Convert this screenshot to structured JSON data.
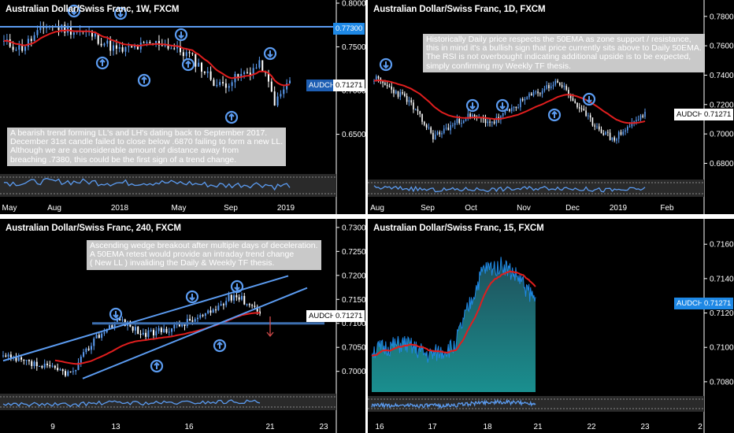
{
  "chart_data": [
    {
      "type": "candlestick",
      "title": "Australian Dollar/Swiss Franc, 1W, FXCM",
      "symbol_tag": "AUDCHF",
      "price_tag": "0.71271",
      "level_tag": "0.77300",
      "y_ticks": [
        "0.80000",
        "0.75000",
        "0.70000",
        "0.65000"
      ],
      "x_ticks": [
        "May",
        "Aug",
        "2018",
        "May",
        "Sep",
        "2019"
      ],
      "ylim": [
        0.61,
        0.8
      ],
      "last_close": 0.71271,
      "horizontal_level": 0.773,
      "annotation": [
        "A bearish trend forming LL's and LH's dating back to September 2017.",
        "December 31st candle failed to close below .6870 failing to form a new LL.",
        "Although we are a considerable amount of distance away from",
        "breaching .7380, this could be the first sign of a trend change."
      ]
    },
    {
      "type": "candlestick",
      "title": "Australian Dollar/Swiss Franc, 1D, FXCM",
      "symbol_tag": "AUDCHF",
      "price_tag": "0.71271",
      "y_ticks": [
        "0.78000",
        "0.76000",
        "0.74000",
        "0.72000",
        "0.70000",
        "0.68000"
      ],
      "x_ticks": [
        "Aug",
        "Sep",
        "Oct",
        "Nov",
        "Dec",
        "2019",
        "Feb"
      ],
      "ylim": [
        0.669,
        0.789
      ],
      "last_close": 0.71271,
      "annotation": [
        "Historically Daily price respects the 50EMA as zone support / resistance,",
        "this in mind it's a bullish sign that price currently sits above to Daily 50EMA.",
        "The RSI is not overbought indicating additional upside is to be expected,",
        "simply confirming my Weekly TF thesis."
      ]
    },
    {
      "type": "candlestick",
      "title": "Australian Dollar/Swiss Franc, 240, FXCM",
      "symbol_tag": "AUDCHF",
      "price_tag": "0.71271",
      "y_ticks": [
        "0.73000",
        "0.72500",
        "0.72000",
        "0.71500",
        "0.71000",
        "0.70500",
        "0.70000"
      ],
      "x_ticks": [
        "9",
        "13",
        "16",
        "21",
        "23"
      ],
      "ylim": [
        0.6965,
        0.7308
      ],
      "last_close": 0.71271,
      "horizontal_level": 0.71,
      "annotation": [
        "Ascending wedge breakout after multiple days of deceleration.",
        "A 50EMA retest would provide an intraday trend change",
        "( New LL ) invaliding the Daily & Weekly TF thesis."
      ]
    },
    {
      "type": "area",
      "title": "Australian Dollar/Swiss Franc, 15, FXCM",
      "symbol_tag": "AUDCHF",
      "price_tag": "0.71271",
      "y_ticks": [
        "0.71600",
        "0.71400",
        "0.71200",
        "0.71000",
        "0.70800"
      ],
      "x_ticks": [
        "16",
        "17",
        "18",
        "21",
        "22",
        "23",
        "2"
      ],
      "ylim": [
        0.7074,
        0.7172
      ],
      "last_close": 0.71271
    }
  ]
}
